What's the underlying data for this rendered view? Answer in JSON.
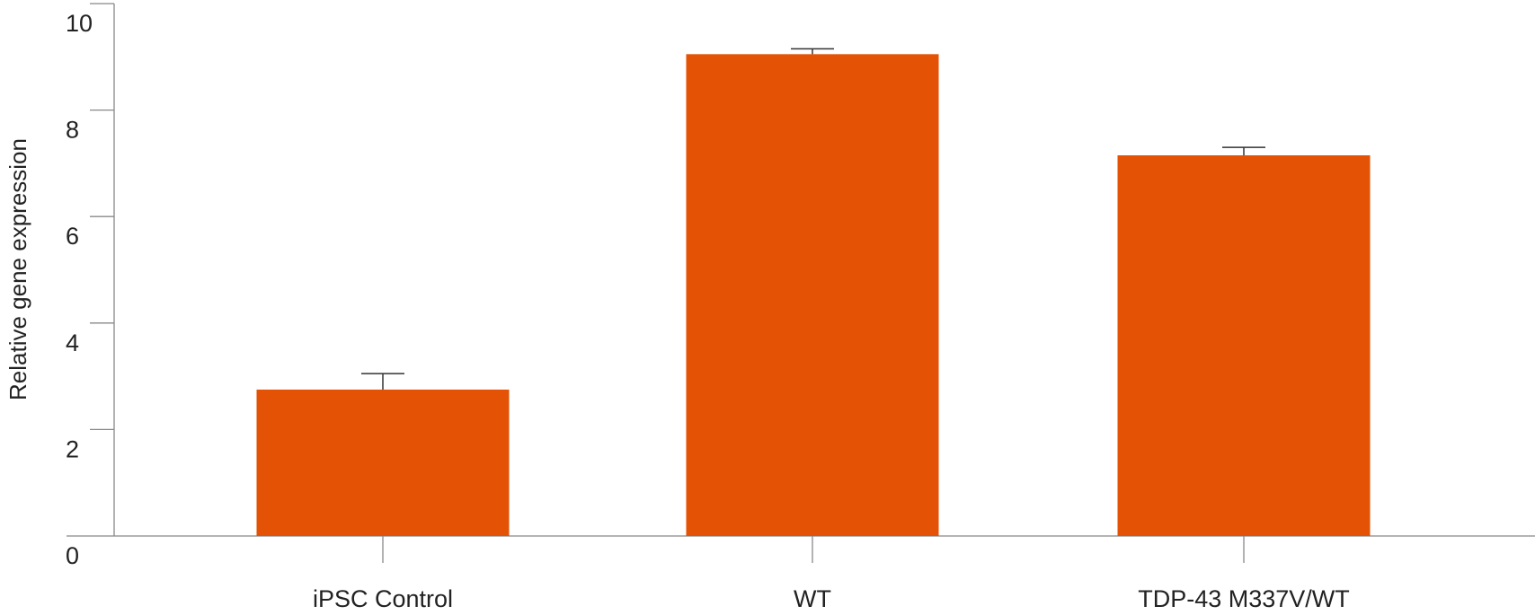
{
  "chart_data": {
    "type": "bar",
    "title": "",
    "xlabel": "",
    "ylabel": "Relative gene expression",
    "categories": [
      "iPSC Control",
      "WT",
      "TDP-43 M337V/WT"
    ],
    "values": [
      2.75,
      9.05,
      7.15
    ],
    "error_upper": [
      3.05,
      9.15,
      7.3
    ],
    "ylim": [
      0,
      10
    ],
    "yticks": [
      0,
      2,
      4,
      6,
      8,
      10
    ],
    "grid": false,
    "legend": "none",
    "colors": {
      "bar": "#E35205",
      "axis": "#888888",
      "error_bar": "#333333"
    }
  }
}
